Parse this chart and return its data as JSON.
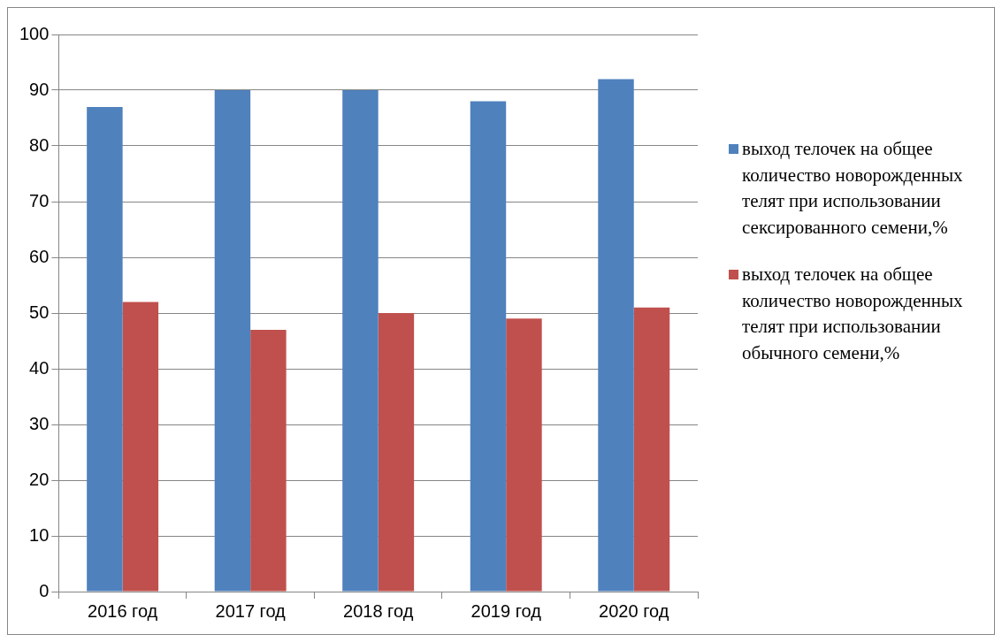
{
  "chart_data": {
    "type": "bar",
    "categories": [
      "2016 год",
      "2017 год",
      "2018 год",
      "2019 год",
      "2020 год"
    ],
    "series": [
      {
        "name": "выход телочек на общее количество новорожденных телят при использовании сексированного семени,%",
        "color": "#4f81bd",
        "values": [
          87,
          90,
          90,
          88,
          92
        ]
      },
      {
        "name": "выход телочек на общее количество новорожденных телят при использовании обычного семени,%",
        "color": "#c0504d",
        "values": [
          52,
          47,
          50,
          49,
          51
        ]
      }
    ],
    "ylim": [
      0,
      100
    ],
    "yticks": [
      0,
      10,
      20,
      30,
      40,
      50,
      60,
      70,
      80,
      90,
      100
    ],
    "grid": "y",
    "legend": "right"
  }
}
